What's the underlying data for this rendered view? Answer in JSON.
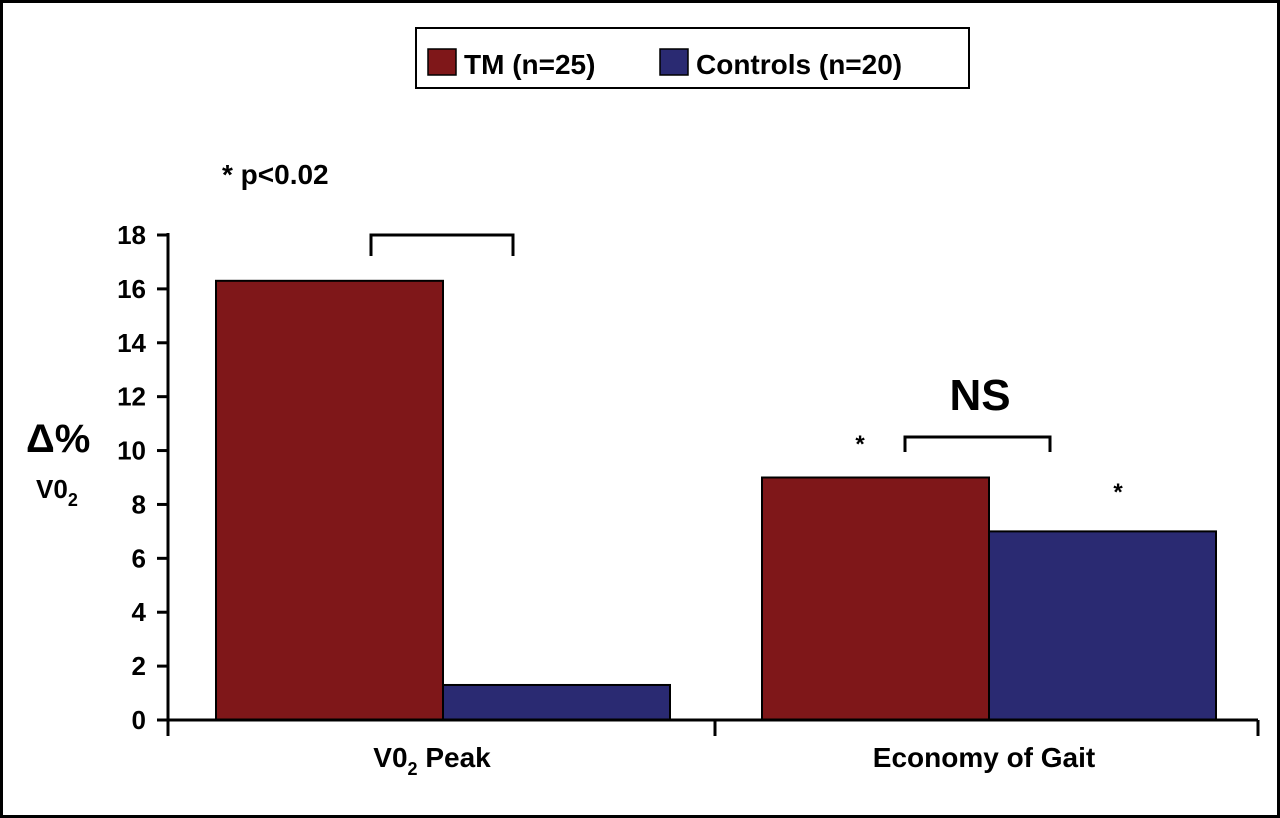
{
  "chart_data": {
    "type": "bar",
    "title": "",
    "categories": [
      "V0",
      "Economy of Gait"
    ],
    "category_subscripts": [
      "2",
      ""
    ],
    "category_suffixes": [
      " Peak",
      ""
    ],
    "series": [
      {
        "name": "TM (n=25)",
        "color": "#7f1719",
        "values": [
          16.3,
          9.0
        ]
      },
      {
        "name": "Controls (n=20)",
        "color": "#2a2a72",
        "values": [
          1.3,
          7.0
        ]
      }
    ],
    "ylim": [
      0,
      18
    ],
    "yticks": [
      0,
      2,
      4,
      6,
      8,
      10,
      12,
      14,
      16,
      18
    ],
    "ylabel_line1": "Δ%",
    "ylabel_line2": "V0",
    "ylabel_sub": "2",
    "xlabel": "",
    "legend_position": "top-center",
    "annotations": {
      "significance_note": "* p<0.02",
      "group2_label": "NS",
      "star": "*"
    }
  }
}
